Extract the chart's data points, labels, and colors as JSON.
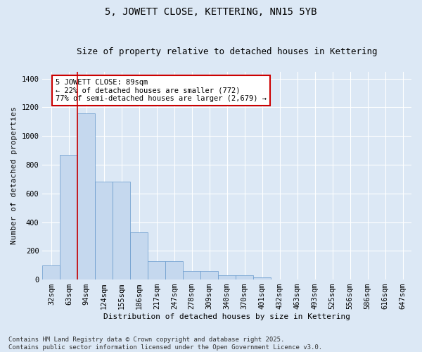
{
  "title": "5, JOWETT CLOSE, KETTERING, NN15 5YB",
  "subtitle": "Size of property relative to detached houses in Kettering",
  "xlabel": "Distribution of detached houses by size in Kettering",
  "ylabel": "Number of detached properties",
  "categories": [
    "32sqm",
    "63sqm",
    "94sqm",
    "124sqm",
    "155sqm",
    "186sqm",
    "217sqm",
    "247sqm",
    "278sqm",
    "309sqm",
    "340sqm",
    "370sqm",
    "401sqm",
    "432sqm",
    "463sqm",
    "493sqm",
    "525sqm",
    "556sqm",
    "586sqm",
    "616sqm",
    "647sqm"
  ],
  "values": [
    100,
    870,
    1160,
    680,
    680,
    330,
    130,
    130,
    60,
    60,
    30,
    30,
    15,
    0,
    0,
    0,
    0,
    0,
    0,
    0,
    0
  ],
  "bar_color": "#c5d8ee",
  "bar_edgecolor": "#6699cc",
  "vline_color": "#cc0000",
  "vline_position": 1.5,
  "ylim": [
    0,
    1450
  ],
  "yticks": [
    0,
    200,
    400,
    600,
    800,
    1000,
    1200,
    1400
  ],
  "annotation_text": "5 JOWETT CLOSE: 89sqm\n← 22% of detached houses are smaller (772)\n77% of semi-detached houses are larger (2,679) →",
  "annotation_box_edgecolor": "#cc0000",
  "annotation_box_facecolor": "#ffffff",
  "background_color": "#dce8f5",
  "grid_color": "#ffffff",
  "footer_line1": "Contains HM Land Registry data © Crown copyright and database right 2025.",
  "footer_line2": "Contains public sector information licensed under the Open Government Licence v3.0.",
  "title_fontsize": 10,
  "subtitle_fontsize": 9,
  "annotation_fontsize": 7.5,
  "axis_label_fontsize": 8,
  "tick_fontsize": 7.5,
  "footer_fontsize": 6.5,
  "ylabel_fontsize": 8
}
